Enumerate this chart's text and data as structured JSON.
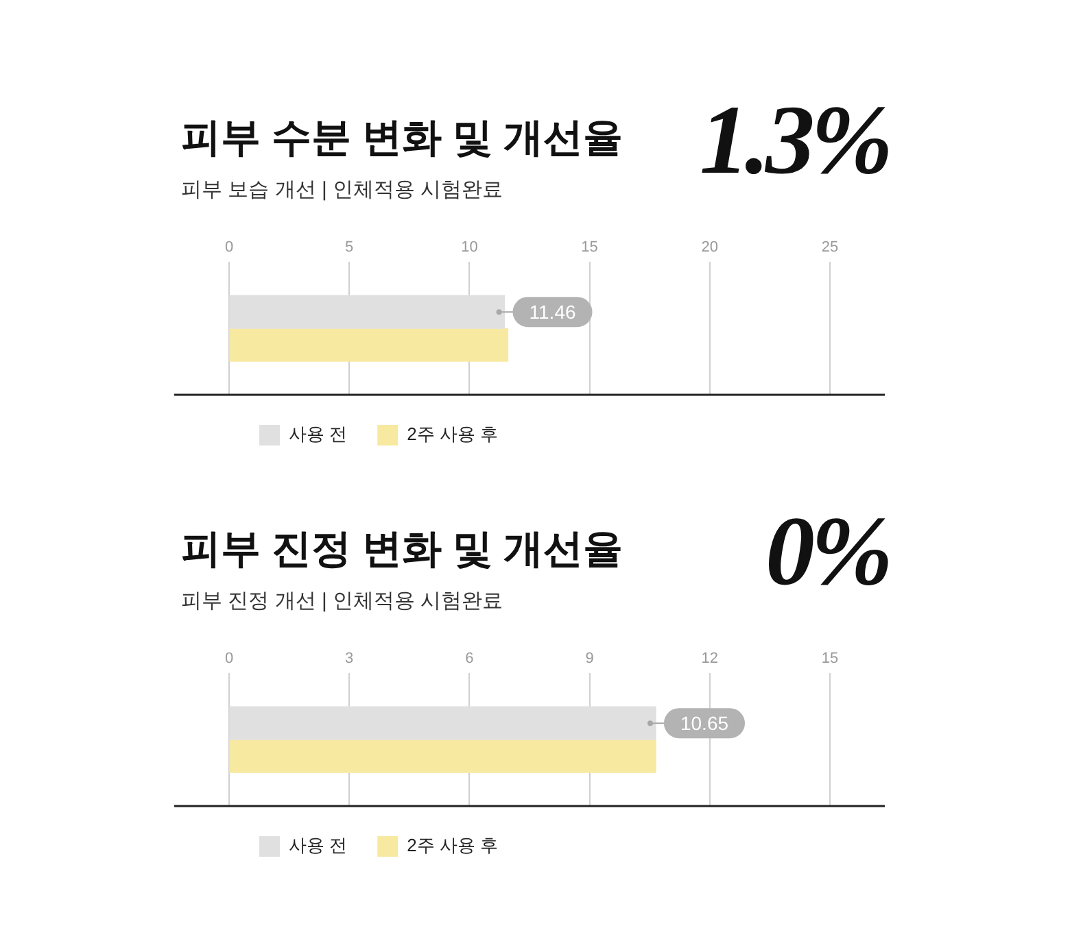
{
  "chart_data": [
    {
      "type": "bar",
      "orientation": "horizontal",
      "title": "피부 수분 변화 및 개선율",
      "subtitle": "피부 보습 개선 | 인체적용 시험완료",
      "annotations": [
        "1.3%"
      ],
      "categories": [
        null
      ],
      "series": [
        {
          "name": "사용 전",
          "color": "#e0e0e0",
          "values": [
            11.46
          ],
          "value_labels": [
            "11.46"
          ]
        },
        {
          "name": "2주 사용 후",
          "color": "#f8e9a1",
          "values": [
            11.6
          ],
          "value_labels": [
            null
          ]
        }
      ],
      "xlim": [
        0,
        25
      ],
      "xticks": [
        0,
        5,
        10,
        15,
        20,
        25
      ],
      "grid": "x",
      "legend": "bottom left"
    },
    {
      "type": "bar",
      "orientation": "horizontal",
      "title": "피부 진정 변화 및 개선율",
      "subtitle": "피부 진정 개선 | 인체적용 시험완료",
      "annotations": [
        "0%"
      ],
      "categories": [
        null
      ],
      "series": [
        {
          "name": "사용 전",
          "color": "#e0e0e0",
          "values": [
            10.65
          ],
          "value_labels": [
            "10.65"
          ]
        },
        {
          "name": "2주 사용 후",
          "color": "#f8e9a1",
          "values": [
            10.65
          ],
          "value_labels": [
            null
          ]
        }
      ],
      "xlim": [
        0,
        15
      ],
      "xticks": [
        0,
        3,
        6,
        9,
        12,
        15
      ],
      "grid": "x",
      "legend": "bottom left"
    }
  ]
}
